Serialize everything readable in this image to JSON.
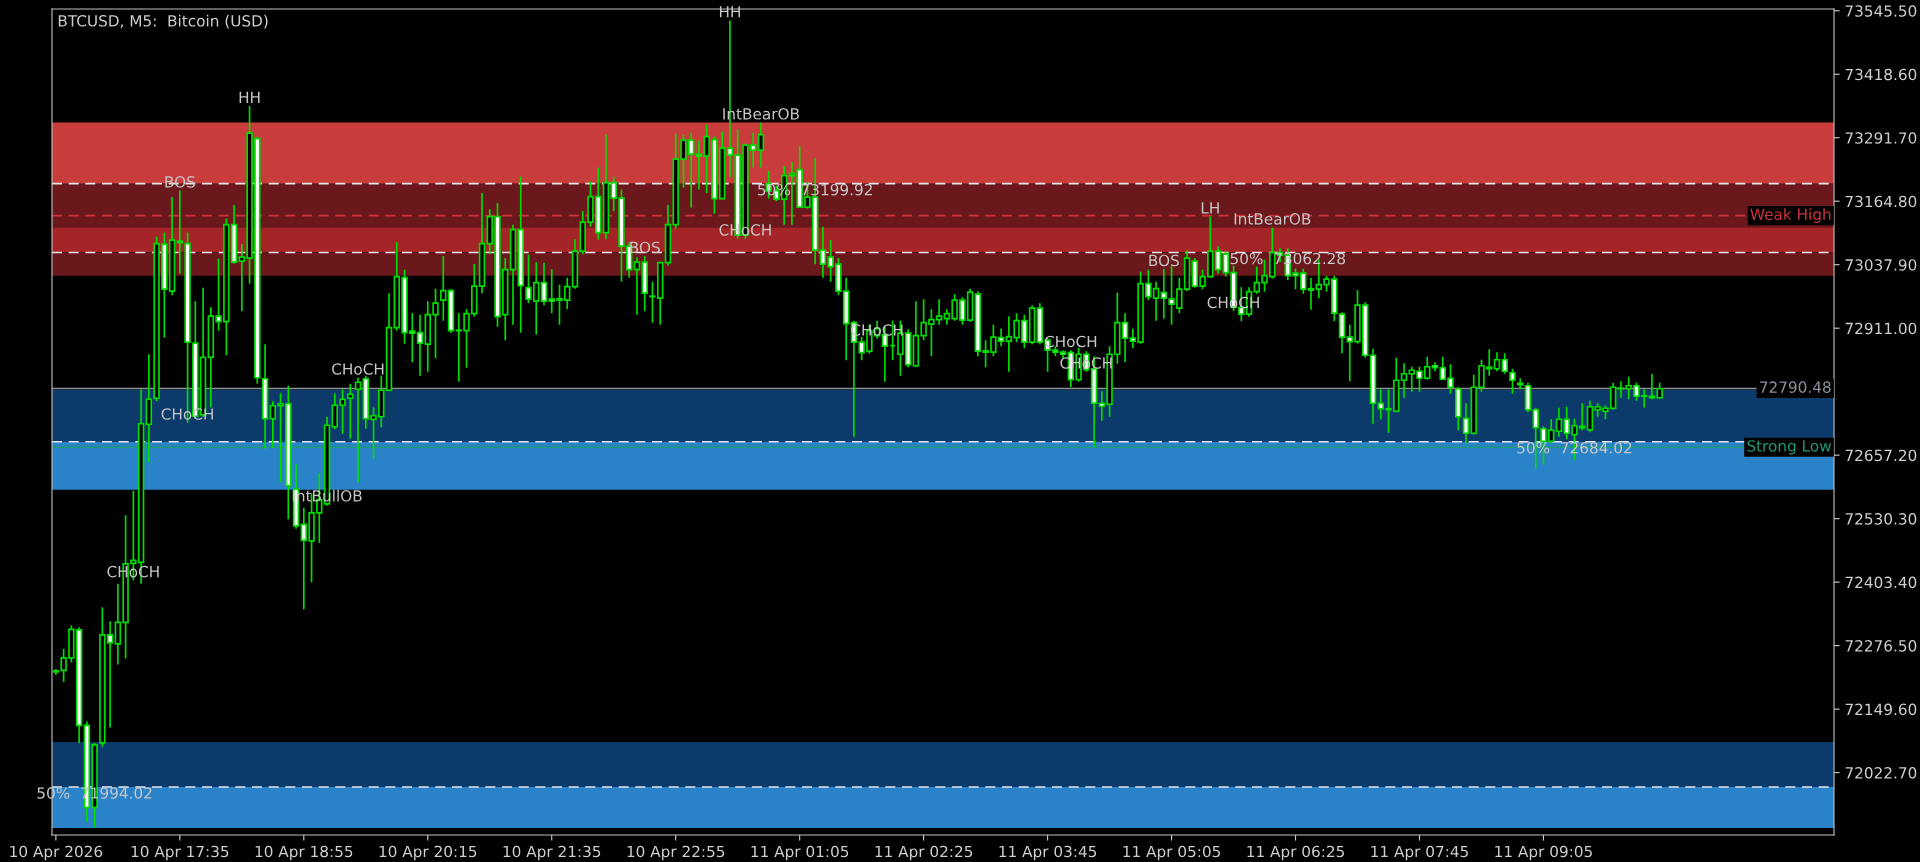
{
  "chart_data": {
    "type": "candlestick",
    "title": "BTCUSD, M5:  Bitcoin (USD)",
    "color": "#00dd00",
    "categories": [
      "10 Apr 2026",
      null,
      null,
      null,
      null,
      null,
      null,
      null,
      null,
      null,
      null,
      null,
      null,
      null,
      null,
      null,
      "10 Apr 17:35",
      null,
      null,
      null,
      null,
      null,
      null,
      null,
      null,
      null,
      null,
      null,
      null,
      null,
      null,
      null,
      "10 Apr 18:55",
      null,
      null,
      null,
      null,
      null,
      null,
      null,
      null,
      null,
      null,
      null,
      null,
      null,
      null,
      null,
      "10 Apr 20:15",
      null,
      null,
      null,
      null,
      null,
      null,
      null,
      null,
      null,
      null,
      null,
      null,
      null,
      null,
      null,
      "10 Apr 21:35",
      null,
      null,
      null,
      null,
      null,
      null,
      null,
      null,
      null,
      null,
      null,
      null,
      null,
      null,
      null,
      "10 Apr 22:55",
      null,
      null,
      null,
      null,
      null,
      null,
      null,
      null,
      null,
      null,
      null,
      null,
      null,
      null,
      null,
      "11 Apr 01:05",
      null,
      null,
      null,
      null,
      null,
      null,
      null,
      null,
      null,
      null,
      null,
      null,
      null,
      null,
      null,
      "11 Apr 02:25",
      null,
      null,
      null,
      null,
      null,
      null,
      null,
      null,
      null,
      null,
      null,
      null,
      null,
      null,
      null,
      "11 Apr 03:45",
      null,
      null,
      null,
      null,
      null,
      null,
      null,
      null,
      null,
      null,
      null,
      null,
      null,
      null,
      null,
      "11 Apr 05:05",
      null,
      null,
      null,
      null,
      null,
      null,
      null,
      null,
      null,
      null,
      null,
      null,
      null,
      null,
      null,
      "11 Apr 06:25",
      null,
      null,
      null,
      null,
      null,
      null,
      null,
      null,
      null,
      null,
      null,
      null,
      null,
      null,
      null,
      "11 Apr 07:45",
      null,
      null,
      null,
      null,
      null,
      null,
      null,
      null,
      null,
      null,
      null,
      null,
      null,
      null,
      null,
      "11 Apr 09:05",
      null,
      null,
      null,
      null,
      null,
      null,
      null,
      null,
      null,
      null,
      null,
      null,
      null,
      null,
      null,
      null,
      null,
      null,
      null,
      null,
      null,
      null,
      null,
      null,
      null,
      null,
      null,
      null,
      null,
      null,
      null,
      null,
      null,
      null,
      null,
      null,
      null
    ],
    "ohlc": [
      [
        72224,
        72230,
        72218,
        72226
      ],
      [
        72227,
        72270,
        72204,
        72252
      ],
      [
        72252,
        72317,
        72243,
        72309
      ],
      [
        72308,
        72313,
        72082,
        72117
      ],
      [
        72117,
        72125,
        71925,
        71953
      ],
      [
        71953,
        72082,
        71913,
        72078
      ],
      [
        72082,
        72353,
        72074,
        72298
      ],
      [
        72298,
        72325,
        72113,
        72282
      ],
      [
        72280,
        72400,
        72239,
        72323
      ],
      [
        72323,
        72537,
        72251,
        72440
      ],
      [
        72441,
        72586,
        72407,
        72447
      ],
      [
        72443,
        72789,
        72400,
        72720
      ],
      [
        72719,
        72859,
        72643,
        72769
      ],
      [
        72771,
        73094,
        72765,
        73080
      ],
      [
        73079,
        73102,
        72892,
        72989
      ],
      [
        72985,
        73173,
        72977,
        73087
      ],
      [
        73085,
        73186,
        73020,
        73082
      ],
      [
        73080,
        73102,
        72722,
        72883
      ],
      [
        72881,
        72965,
        72730,
        72735
      ],
      [
        72738,
        72992,
        72734,
        72853
      ],
      [
        72853,
        72953,
        72753,
        72935
      ],
      [
        72935,
        73050,
        72906,
        72924
      ],
      [
        72924,
        73130,
        72857,
        73118
      ],
      [
        73118,
        73157,
        73040,
        73043
      ],
      [
        73045,
        73079,
        72945,
        73053
      ],
      [
        73051,
        73355,
        73000,
        73301
      ],
      [
        73290,
        73294,
        72800,
        72812
      ],
      [
        72810,
        72879,
        72670,
        72730
      ],
      [
        72730,
        72765,
        72672,
        72756
      ],
      [
        72756,
        72781,
        72603,
        72760
      ],
      [
        72760,
        72796,
        72529,
        72596
      ],
      [
        72589,
        72639,
        72510,
        72516
      ],
      [
        72519,
        72552,
        72349,
        72487
      ],
      [
        72486,
        72580,
        72403,
        72542
      ],
      [
        72542,
        72621,
        72482,
        72568
      ],
      [
        72560,
        72734,
        72556,
        72717
      ],
      [
        72714,
        72781,
        72709,
        72757
      ],
      [
        72757,
        72789,
        72700,
        72769
      ],
      [
        72771,
        72800,
        72690,
        72779
      ],
      [
        72789,
        72812,
        72603,
        72803
      ],
      [
        72810,
        72816,
        72710,
        72730
      ],
      [
        72729,
        72753,
        72650,
        72736
      ],
      [
        72734,
        72816,
        72713,
        72787
      ],
      [
        72787,
        72981,
        72785,
        72912
      ],
      [
        72912,
        73083,
        72906,
        73014
      ],
      [
        73012,
        73028,
        72880,
        72902
      ],
      [
        72905,
        72941,
        72843,
        72901
      ],
      [
        72902,
        72938,
        72816,
        72881
      ],
      [
        72879,
        72965,
        72824,
        72938
      ],
      [
        72938,
        72990,
        72851,
        72961
      ],
      [
        72967,
        73055,
        72926,
        72986
      ],
      [
        72986,
        72989,
        72902,
        72906
      ],
      [
        72907,
        72941,
        72804,
        72906
      ],
      [
        72906,
        72949,
        72832,
        72940
      ],
      [
        72940,
        73039,
        72934,
        72995
      ],
      [
        72995,
        73181,
        72981,
        73080
      ],
      [
        73080,
        73149,
        73059,
        73134
      ],
      [
        73134,
        73161,
        72914,
        72934
      ],
      [
        72938,
        73051,
        72887,
        73028
      ],
      [
        73028,
        73118,
        72918,
        73108
      ],
      [
        73108,
        73214,
        72902,
        72996
      ],
      [
        72992,
        73058,
        72961,
        72969
      ],
      [
        72965,
        73043,
        72898,
        73002
      ],
      [
        73002,
        73042,
        72957,
        72965
      ],
      [
        72969,
        73029,
        72941,
        72965
      ],
      [
        72967,
        72998,
        72918,
        72970
      ],
      [
        72967,
        73012,
        72949,
        72994
      ],
      [
        72994,
        73089,
        72990,
        73065
      ],
      [
        73065,
        73145,
        73059,
        73123
      ],
      [
        73123,
        73204,
        73114,
        73174
      ],
      [
        73174,
        73232,
        73088,
        73102
      ],
      [
        73102,
        73298,
        73089,
        73202
      ],
      [
        73202,
        73214,
        73145,
        73171
      ],
      [
        73171,
        73188,
        73004,
        73075
      ],
      [
        73075,
        73083,
        73012,
        73028
      ],
      [
        73028,
        73053,
        72938,
        73043
      ],
      [
        73043,
        73055,
        72945,
        72981
      ],
      [
        72975,
        73004,
        72922,
        72974
      ],
      [
        72971,
        73043,
        72918,
        73042
      ],
      [
        73042,
        73157,
        73036,
        73118
      ],
      [
        73118,
        73300,
        73110,
        73249
      ],
      [
        73249,
        73298,
        73192,
        73287
      ],
      [
        73287,
        73302,
        73152,
        73259
      ],
      [
        73259,
        73286,
        73188,
        73255
      ],
      [
        73255,
        73318,
        73181,
        73294
      ],
      [
        73288,
        73294,
        73140,
        73170
      ],
      [
        73170,
        73304,
        73169,
        73271
      ],
      [
        73271,
        73526,
        73212,
        73257
      ],
      [
        73257,
        73308,
        73090,
        73097
      ],
      [
        73097,
        73280,
        73090,
        73277
      ],
      [
        73277,
        73302,
        73232,
        73267
      ],
      [
        73267,
        73322,
        73232,
        73298
      ],
      [
        73200,
        73225,
        73170,
        73185
      ],
      [
        73186,
        73196,
        73165,
        73169
      ],
      [
        73169,
        73235,
        73118,
        73216
      ],
      [
        73216,
        73243,
        73118,
        73220
      ],
      [
        73228,
        73275,
        73152,
        73153
      ],
      [
        73153,
        73204,
        73150,
        73173
      ],
      [
        73173,
        73251,
        73039,
        73067
      ],
      [
        73067,
        73114,
        73012,
        73039
      ],
      [
        73053,
        73087,
        73004,
        73034
      ],
      [
        73039,
        73051,
        72977,
        72985
      ],
      [
        72985,
        73012,
        72847,
        72920
      ],
      [
        72922,
        72926,
        72694,
        72883
      ],
      [
        72883,
        72894,
        72847,
        72862
      ],
      [
        72865,
        72918,
        72860,
        72906
      ],
      [
        72896,
        72926,
        72890,
        72910
      ],
      [
        72898,
        72914,
        72804,
        72875
      ],
      [
        72876,
        72926,
        72847,
        72876
      ],
      [
        72859,
        72926,
        72816,
        72901
      ],
      [
        72901,
        72909,
        72833,
        72838
      ],
      [
        72836,
        72965,
        72833,
        72896
      ],
      [
        72896,
        72969,
        72887,
        72922
      ],
      [
        72919,
        72949,
        72855,
        72928
      ],
      [
        72928,
        72969,
        72918,
        72935
      ],
      [
        72930,
        72949,
        72918,
        72940
      ],
      [
        72930,
        72979,
        72926,
        72967
      ],
      [
        72967,
        72973,
        72918,
        72927
      ],
      [
        72927,
        72990,
        72924,
        72983
      ],
      [
        72979,
        72985,
        72855,
        72865
      ],
      [
        72866,
        72887,
        72833,
        72863
      ],
      [
        72863,
        72918,
        72855,
        72893
      ],
      [
        72892,
        72910,
        72875,
        72885
      ],
      [
        72885,
        72935,
        72824,
        72894
      ],
      [
        72892,
        72941,
        72883,
        72926
      ],
      [
        72926,
        72938,
        72871,
        72883
      ],
      [
        72883,
        72957,
        72879,
        72951
      ],
      [
        72951,
        72961,
        72879,
        72883
      ],
      [
        72887,
        72891,
        72824,
        72867
      ],
      [
        72867,
        72875,
        72855,
        72863
      ],
      [
        72863,
        72867,
        72851,
        72859
      ],
      [
        72862,
        72867,
        72793,
        72808
      ],
      [
        72808,
        72872,
        72804,
        72859
      ],
      [
        72859,
        72865,
        72824,
        72828
      ],
      [
        72830,
        72855,
        72674,
        72761
      ],
      [
        72761,
        72785,
        72726,
        72755
      ],
      [
        72759,
        72875,
        72734,
        72859
      ],
      [
        72859,
        72982,
        72840,
        72922
      ],
      [
        72922,
        72941,
        72843,
        72891
      ],
      [
        72891,
        72910,
        72871,
        72885
      ],
      [
        72883,
        73024,
        72880,
        73000
      ],
      [
        73000,
        73028,
        72967,
        72974
      ],
      [
        72971,
        73004,
        72926,
        72990
      ],
      [
        72982,
        73029,
        72930,
        72971
      ],
      [
        72969,
        73036,
        72918,
        72959
      ],
      [
        72951,
        73012,
        72941,
        72989
      ],
      [
        72989,
        73067,
        72985,
        73051
      ],
      [
        73045,
        73051,
        72992,
        72995
      ],
      [
        72995,
        73028,
        72989,
        73014
      ],
      [
        73014,
        73134,
        73012,
        73065
      ],
      [
        73065,
        73075,
        73020,
        73028
      ],
      [
        73059,
        73065,
        73014,
        73022
      ],
      [
        73022,
        73036,
        72945,
        72953
      ],
      [
        72952,
        72993,
        72925,
        72939
      ],
      [
        72939,
        72993,
        72934,
        72984
      ],
      [
        72984,
        73034,
        72980,
        73002
      ],
      [
        73002,
        73048,
        72984,
        73016
      ],
      [
        73014,
        73112,
        73010,
        73062
      ],
      [
        73062,
        73071,
        73043,
        73057
      ],
      [
        73057,
        73071,
        73007,
        73016
      ],
      [
        73021,
        73030,
        72989,
        73016
      ],
      [
        73021,
        73030,
        72980,
        72989
      ],
      [
        72990,
        73012,
        72948,
        72987
      ],
      [
        72989,
        73048,
        72971,
        72998
      ],
      [
        72998,
        73016,
        72984,
        73009
      ],
      [
        73009,
        73016,
        72925,
        72941
      ],
      [
        72939,
        72943,
        72861,
        72893
      ],
      [
        72893,
        72918,
        72805,
        72884
      ],
      [
        72884,
        72987,
        72880,
        72957
      ],
      [
        72957,
        72963,
        72852,
        72857
      ],
      [
        72857,
        72870,
        72720,
        72761
      ],
      [
        72761,
        72789,
        72729,
        72750
      ],
      [
        72750,
        72789,
        72702,
        72748
      ],
      [
        72745,
        72852,
        72743,
        72807
      ],
      [
        72807,
        72841,
        72772,
        72820
      ],
      [
        72820,
        72834,
        72784,
        72827
      ],
      [
        72825,
        72834,
        72784,
        72811
      ],
      [
        72811,
        72854,
        72808,
        72834
      ],
      [
        72836,
        72843,
        72825,
        72832
      ],
      [
        72832,
        72854,
        72807,
        72809
      ],
      [
        72811,
        72839,
        72780,
        72793
      ],
      [
        72790,
        72793,
        72707,
        72734
      ],
      [
        72731,
        72761,
        72680,
        72701
      ],
      [
        72701,
        72818,
        72698,
        72793
      ],
      [
        72793,
        72848,
        72784,
        72836
      ],
      [
        72830,
        72869,
        72816,
        72833
      ],
      [
        72830,
        72863,
        72825,
        72848
      ],
      [
        72848,
        72861,
        72820,
        72825
      ],
      [
        72822,
        72830,
        72780,
        72807
      ],
      [
        72801,
        72811,
        72789,
        72798
      ],
      [
        72796,
        72802,
        72743,
        72748
      ],
      [
        72748,
        72752,
        72630,
        72712
      ],
      [
        72710,
        72715,
        72639,
        72685
      ],
      [
        72685,
        72729,
        72680,
        72707
      ],
      [
        72705,
        72752,
        72694,
        72729
      ],
      [
        72729,
        72754,
        72689,
        72701
      ],
      [
        72698,
        72730,
        72648,
        72716
      ],
      [
        72715,
        72761,
        72707,
        72712
      ],
      [
        72708,
        72766,
        72703,
        72754
      ],
      [
        72748,
        72761,
        72734,
        72754
      ],
      [
        72745,
        72757,
        72729,
        72751
      ],
      [
        72751,
        72802,
        72748,
        72793
      ],
      [
        72791,
        72805,
        72772,
        72790
      ],
      [
        72790,
        72814,
        72769,
        72796
      ],
      [
        72796,
        72802,
        72766,
        72775
      ],
      [
        72776,
        72789,
        72752,
        72775
      ],
      [
        72775,
        72820,
        72769,
        72772
      ],
      [
        72772,
        72802,
        72770,
        72790
      ],
      null,
      null,
      null,
      null,
      null,
      null,
      null,
      null,
      null,
      null,
      null,
      null,
      null,
      null,
      null,
      null,
      null,
      null,
      null,
      null,
      null,
      null
    ],
    "ylim": [
      71898,
      73549
    ],
    "yticks": [
      {
        "value": 73545.5,
        "label": "73545.50"
      },
      {
        "value": 73418.6,
        "label": "73418.60"
      },
      {
        "value": 73291.7,
        "label": "73291.70"
      },
      {
        "value": 73164.8,
        "label": "73164.80"
      },
      {
        "value": 73037.9,
        "label": "73037.90"
      },
      {
        "value": 72911.0,
        "label": "72911.00"
      },
      {
        "value": 72657.2,
        "label": "72657.20"
      },
      {
        "value": 72530.3,
        "label": "72530.30"
      },
      {
        "value": 72403.4,
        "label": "72403.40"
      },
      {
        "value": 72276.5,
        "label": "72276.50"
      },
      {
        "value": 72149.6,
        "label": "72149.60"
      },
      {
        "value": 72022.7,
        "label": "72022.70"
      }
    ],
    "grid": false,
    "bands": [
      {
        "axis": "y",
        "from": 73199.92,
        "to": 73322,
        "color": "#c83c3c"
      },
      {
        "axis": "y",
        "from": 73083,
        "to": 73199.92,
        "color": "#6b181c"
      },
      {
        "axis": "y",
        "from": 73062.28,
        "to": 73112,
        "color": "#a52428"
      },
      {
        "axis": "y",
        "from": 73016,
        "to": 73062.28,
        "color": "#6b181c"
      },
      {
        "axis": "y",
        "from": 72684.02,
        "to": 72788,
        "color": "#0c3a6b"
      },
      {
        "axis": "y",
        "from": 72588,
        "to": 72684.02,
        "color": "#2a82c8"
      },
      {
        "axis": "y",
        "from": 71994.02,
        "to": 72084,
        "color": "#0c3a6b"
      },
      {
        "axis": "y",
        "from": 71912,
        "to": 71994.02,
        "color": "#2a82c8"
      }
    ],
    "ref_lines": [
      {
        "axis": "y",
        "value": 73136,
        "label": "Weak High",
        "color": "#d0323c",
        "line_style": "dashed"
      },
      {
        "axis": "y",
        "value": 73199.92,
        "color": "#e6e6e6",
        "line_style": "dashed"
      },
      {
        "axis": "y",
        "value": 73062.28,
        "color": "#e6e6e6",
        "line_style": "dashed"
      },
      {
        "axis": "y",
        "value": 72684.02,
        "color": "#e6e6e6",
        "line_style": "dashed"
      },
      {
        "axis": "y",
        "value": 71994.02,
        "color": "#e6e6e6",
        "line_style": "dashed"
      },
      {
        "axis": "y",
        "value": 72673,
        "label": "Strong Low",
        "color": "#1e9a7a",
        "line_style": "solid"
      },
      {
        "axis": "y",
        "value": 72790.48,
        "label": "72790.48",
        "color": "#8a9299",
        "line_style": "solid"
      }
    ],
    "annotations": [
      {
        "text": "HH",
        "y": 73355
      },
      {
        "text": "BOS",
        "y": 73186
      },
      {
        "text": "CHoCH",
        "y": 72722
      },
      {
        "text": "BOS",
        "y": 73055
      },
      {
        "text": "CHoCH",
        "y": 72812
      },
      {
        "text": "CHoCH",
        "y": 72407
      },
      {
        "text": "HH",
        "y": 73526
      },
      {
        "text": "IntBearOB",
        "y": 73322
      },
      {
        "text": "50%  73199.92",
        "y": 73199.92
      },
      {
        "text": "CHoCH",
        "y": 73090
      },
      {
        "text": "CHoCH",
        "y": 72890
      },
      {
        "text": "CHoCH",
        "y": 72867
      },
      {
        "text": "CHoCH",
        "y": 72824
      },
      {
        "text": "BOS",
        "y": 73029
      },
      {
        "text": "LH",
        "y": 73134
      },
      {
        "text": "IntBearOB",
        "y": 73112
      },
      {
        "text": "50%  73062.28",
        "y": 73062.28
      },
      {
        "text": "CHoCH",
        "y": 72945
      },
      {
        "text": "50%  72684.02",
        "y": 72684.02
      },
      {
        "text": "IntBullOB",
        "y": 72588
      },
      {
        "text": "50%  71994.02",
        "y": 71994.02
      }
    ]
  }
}
